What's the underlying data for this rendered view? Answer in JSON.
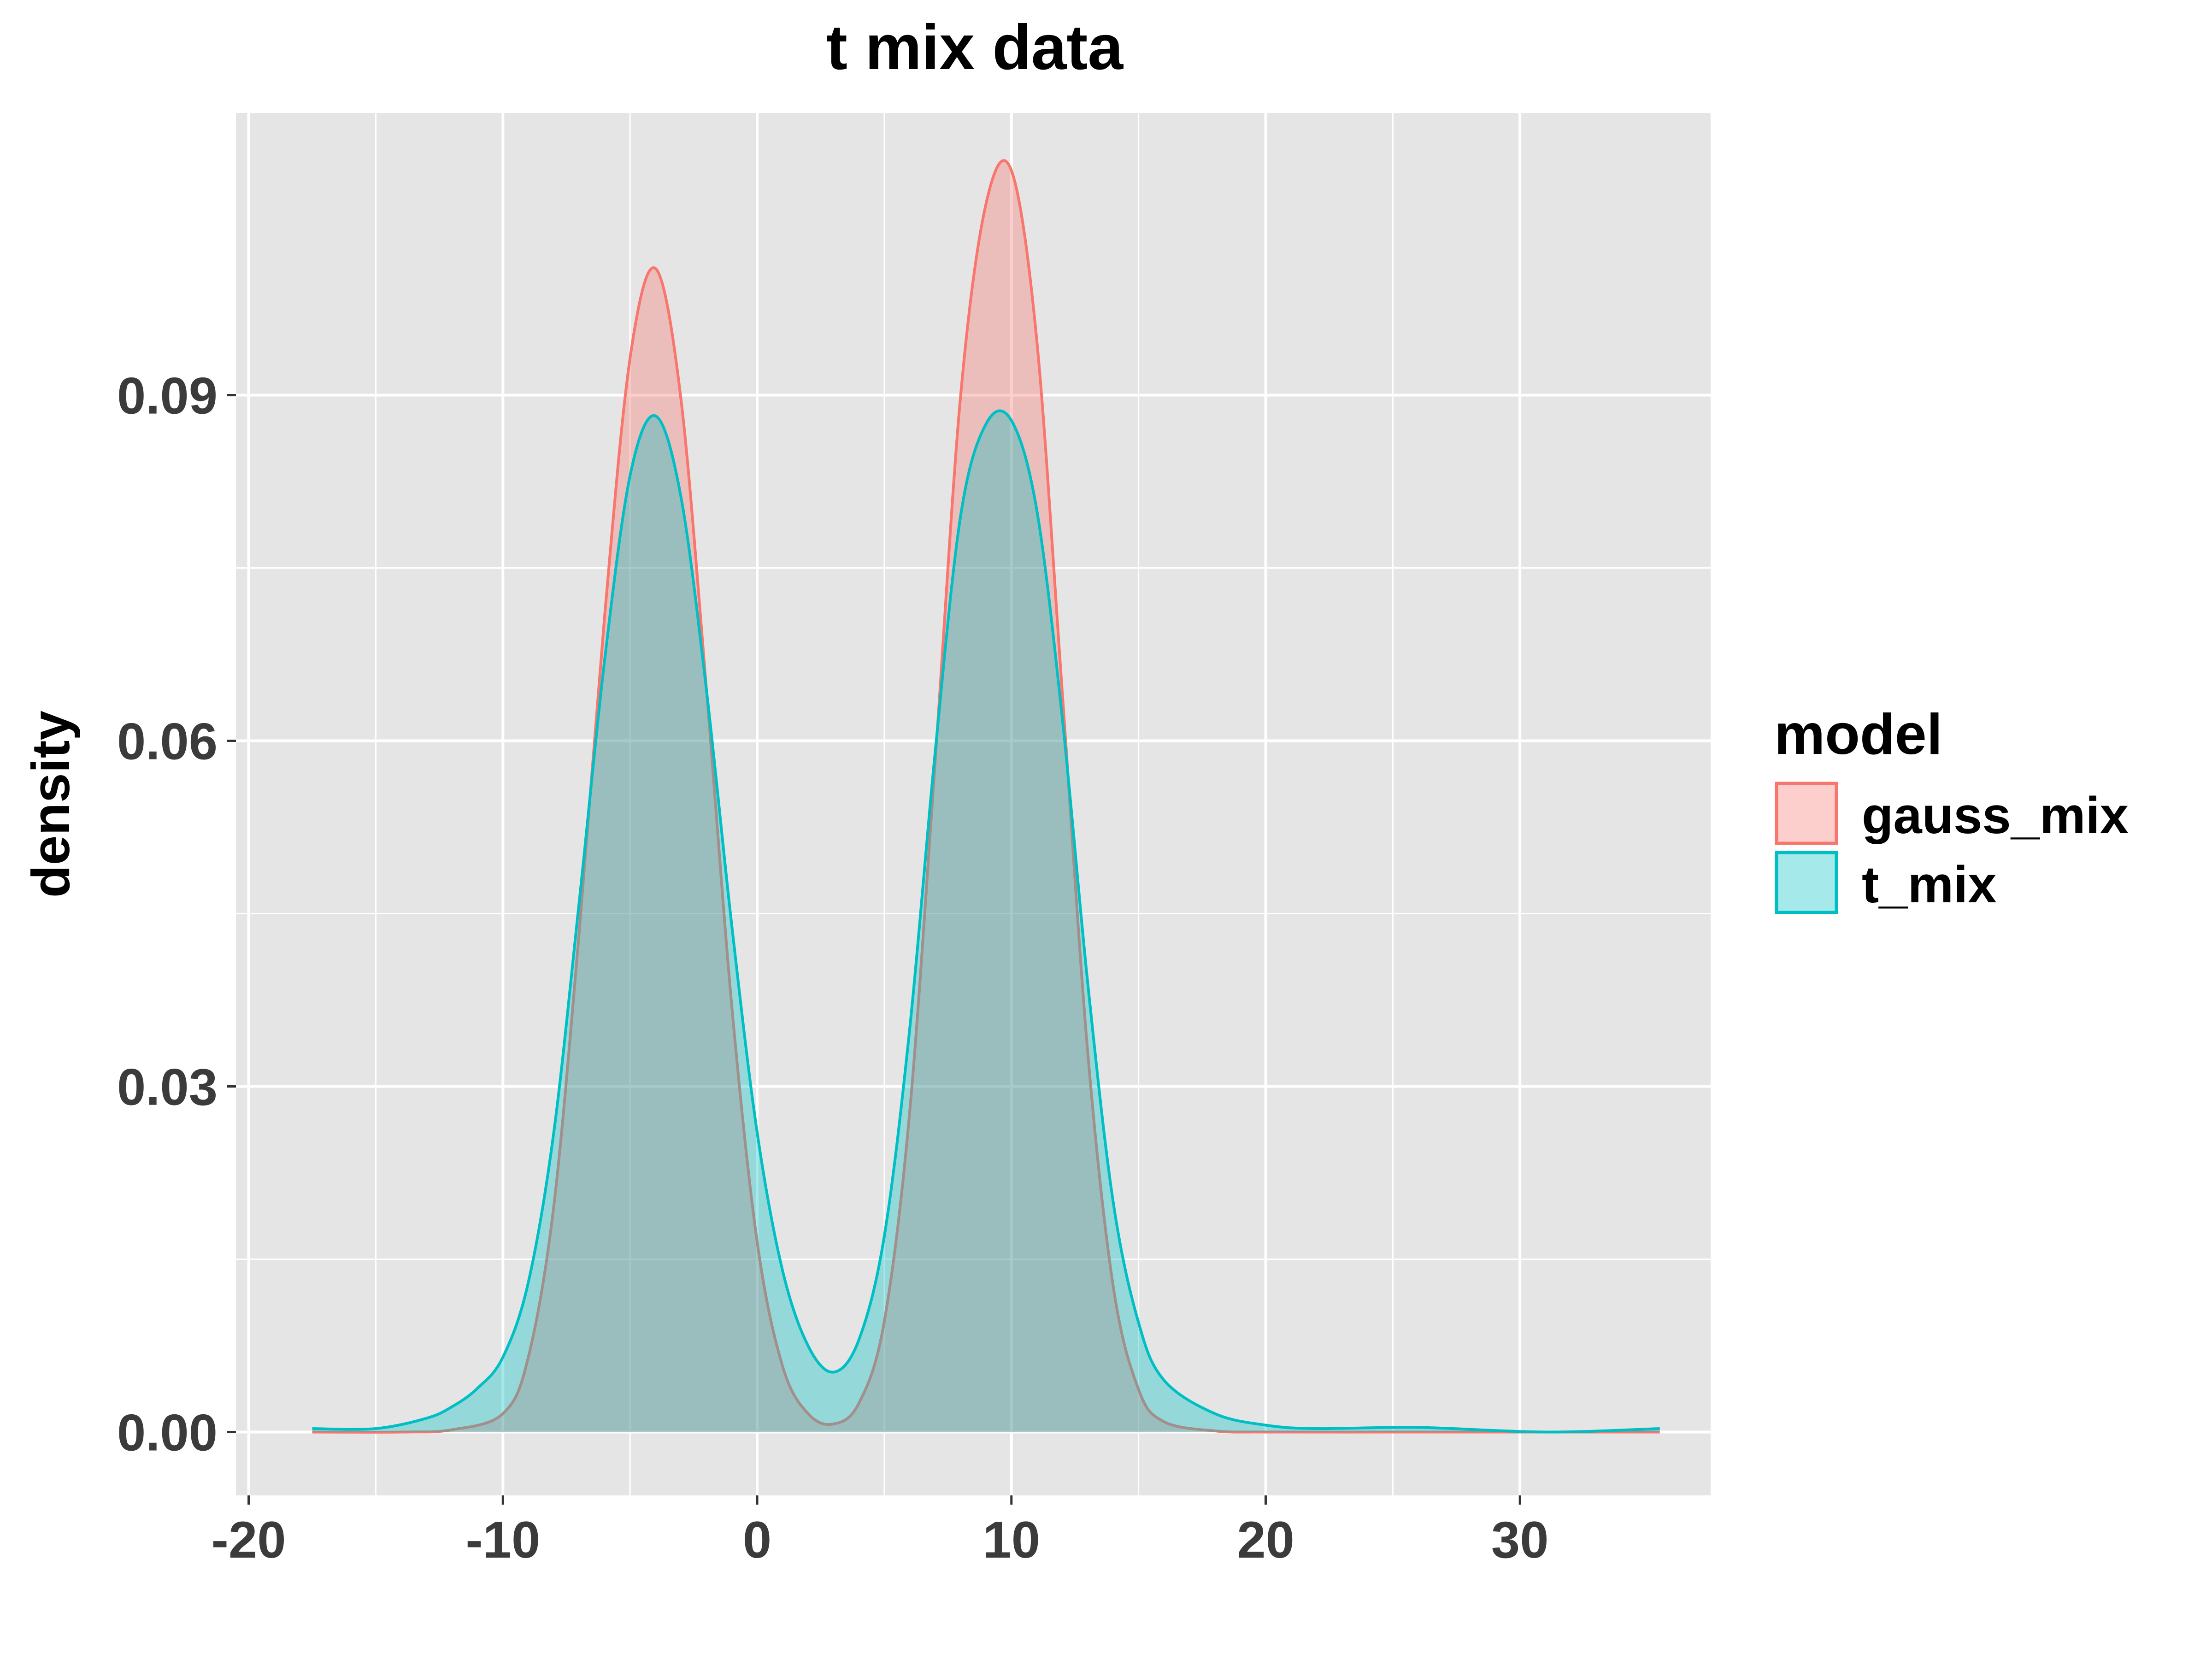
{
  "chart_data": {
    "type": "area",
    "title": "t mix data",
    "xlabel": "",
    "ylabel": "density",
    "xlim": [
      -20.5,
      37.5
    ],
    "ylim": [
      -0.0055,
      0.1145
    ],
    "x_ticks": [
      -20,
      -10,
      0,
      10,
      20,
      30
    ],
    "y_ticks": [
      0.0,
      0.03,
      0.06,
      0.09
    ],
    "x_tick_labels": [
      "-20",
      "-10",
      "0",
      "10",
      "20",
      "30"
    ],
    "y_tick_labels": [
      "0.00",
      "0.03",
      "0.06",
      "0.09"
    ],
    "grid": true,
    "legend_title": "model",
    "legend_position": "right",
    "series": [
      {
        "name": "gauss_mix",
        "color": "#F8766D",
        "x": [
          -17.5,
          -14,
          -12,
          -10,
          -9,
          -8,
          -7,
          -6,
          -5,
          -4,
          -3,
          -2,
          -1,
          0,
          1,
          2,
          3,
          4,
          5,
          6,
          7,
          8,
          9,
          10,
          11,
          12,
          13,
          14,
          15,
          16,
          18,
          20,
          25,
          30,
          35.5
        ],
        "y": [
          0.0,
          0.0,
          0.0002,
          0.0016,
          0.0065,
          0.0196,
          0.0434,
          0.0708,
          0.0932,
          0.101,
          0.0897,
          0.0646,
          0.037,
          0.0165,
          0.0057,
          0.0016,
          0.0007,
          0.0025,
          0.0096,
          0.0278,
          0.0582,
          0.0899,
          0.1066,
          0.1095,
          0.0947,
          0.0642,
          0.033,
          0.0127,
          0.0037,
          0.0009,
          0.0001,
          0.0,
          0.0,
          0.0,
          0.0
        ]
      },
      {
        "name": "t_mix",
        "color": "#00BFC4",
        "x": [
          -17.5,
          -15,
          -13,
          -12,
          -11,
          -10,
          -9,
          -8,
          -7,
          -6,
          -5,
          -4,
          -3,
          -2,
          -1,
          0,
          1,
          2,
          3,
          4,
          5,
          6,
          7,
          8,
          9,
          10,
          11,
          12,
          13,
          14,
          15,
          16,
          18,
          20,
          22,
          26,
          31,
          35.5
        ],
        "y": [
          0.0003,
          0.0003,
          0.0012,
          0.0022,
          0.0038,
          0.0065,
          0.013,
          0.026,
          0.046,
          0.067,
          0.083,
          0.0882,
          0.0812,
          0.0645,
          0.044,
          0.026,
          0.014,
          0.0075,
          0.0052,
          0.008,
          0.017,
          0.035,
          0.059,
          0.0795,
          0.0875,
          0.0878,
          0.08,
          0.062,
          0.039,
          0.02,
          0.0095,
          0.0045,
          0.0016,
          0.0006,
          0.0003,
          0.0004,
          0.0,
          0.0003
        ]
      }
    ]
  }
}
